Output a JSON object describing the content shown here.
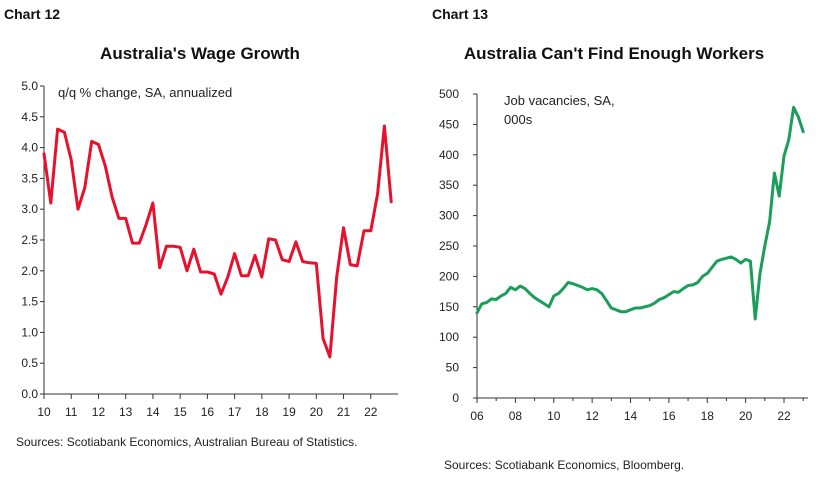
{
  "chart_data": [
    {
      "type": "line",
      "label": "Chart 12",
      "title": "Australia's Wage Growth",
      "annotation": [
        "q/q % change, SA, annualized"
      ],
      "source": "Sources: Scotiabank Economics, Australian Bureau of Statistics.",
      "color": "#e8112d",
      "ylim": [
        0,
        5
      ],
      "yticks": [
        "0.0",
        "0.5",
        "1.0",
        "1.5",
        "2.0",
        "2.5",
        "3.0",
        "3.5",
        "4.0",
        "4.5",
        "5.0"
      ],
      "xlim": [
        2010,
        2023
      ],
      "xticks": [
        "10",
        "11",
        "12",
        "13",
        "14",
        "15",
        "16",
        "17",
        "18",
        "19",
        "20",
        "21",
        "22"
      ],
      "series": [
        {
          "x": [
            2010.0,
            2010.25,
            2010.5,
            2010.75,
            2011.0,
            2011.25,
            2011.5,
            2011.75,
            2012.0,
            2012.25,
            2012.5,
            2012.75,
            2013.0,
            2013.25,
            2013.5,
            2013.75,
            2014.0,
            2014.25,
            2014.5,
            2014.75,
            2015.0,
            2015.25,
            2015.5,
            2015.75,
            2016.0,
            2016.25,
            2016.5,
            2016.75,
            2017.0,
            2017.25,
            2017.5,
            2017.75,
            2018.0,
            2018.25,
            2018.5,
            2018.75,
            2019.0,
            2019.25,
            2019.5,
            2019.75,
            2020.0,
            2020.25,
            2020.5,
            2020.75,
            2021.0,
            2021.25,
            2021.5,
            2021.75,
            2022.0,
            2022.25,
            2022.5,
            2022.75
          ],
          "values": [
            3.9,
            3.1,
            4.3,
            4.25,
            3.8,
            3.0,
            3.35,
            4.1,
            4.05,
            3.7,
            3.2,
            2.85,
            2.85,
            2.45,
            2.45,
            2.75,
            3.1,
            2.05,
            2.4,
            2.4,
            2.38,
            2.0,
            2.35,
            1.98,
            1.98,
            1.95,
            1.62,
            1.9,
            2.28,
            1.92,
            1.92,
            2.25,
            1.9,
            2.52,
            2.5,
            2.18,
            2.15,
            2.47,
            2.15,
            2.13,
            2.12,
            0.9,
            0.6,
            1.9,
            2.7,
            2.1,
            2.08,
            2.65,
            2.65,
            3.25,
            4.35,
            3.12
          ]
        }
      ]
    },
    {
      "type": "line",
      "label": "Chart 13",
      "title": "Australia Can't Find Enough Workers",
      "annotation": [
        "Job vacancies, SA,",
        "000s"
      ],
      "source": "Sources: Scotiabank Economics, Bloomberg.",
      "color": "#1a9e5a",
      "ylim": [
        0,
        500
      ],
      "yticks": [
        "0",
        "50",
        "100",
        "150",
        "200",
        "250",
        "300",
        "350",
        "400",
        "450",
        "500"
      ],
      "xlim": [
        2006,
        2023.25
      ],
      "xticks": [
        "06",
        "08",
        "10",
        "12",
        "14",
        "16",
        "18",
        "20",
        "22"
      ],
      "series": [
        {
          "x": [
            2006.0,
            2006.25,
            2006.5,
            2006.75,
            2007.0,
            2007.25,
            2007.5,
            2007.75,
            2008.0,
            2008.25,
            2008.5,
            2008.75,
            2009.0,
            2009.25,
            2009.5,
            2009.75,
            2010.0,
            2010.25,
            2010.5,
            2010.75,
            2011.0,
            2011.25,
            2011.5,
            2011.75,
            2012.0,
            2012.25,
            2012.5,
            2012.75,
            2013.0,
            2013.25,
            2013.5,
            2013.75,
            2014.0,
            2014.25,
            2014.5,
            2014.75,
            2015.0,
            2015.25,
            2015.5,
            2015.75,
            2016.0,
            2016.25,
            2016.5,
            2016.75,
            2017.0,
            2017.25,
            2017.5,
            2017.75,
            2018.0,
            2018.25,
            2018.5,
            2018.75,
            2019.0,
            2019.25,
            2019.5,
            2019.75,
            2020.0,
            2020.25,
            2020.5,
            2020.75,
            2021.0,
            2021.25,
            2021.5,
            2021.75,
            2022.0,
            2022.25,
            2022.5,
            2022.75,
            2023.0
          ],
          "values": [
            140,
            155,
            157,
            163,
            162,
            168,
            172,
            182,
            178,
            184,
            180,
            172,
            165,
            160,
            155,
            150,
            168,
            172,
            180,
            190,
            188,
            185,
            182,
            178,
            180,
            178,
            172,
            160,
            148,
            145,
            142,
            142,
            145,
            148,
            148,
            150,
            152,
            156,
            162,
            165,
            170,
            175,
            174,
            180,
            185,
            186,
            190,
            200,
            205,
            215,
            225,
            228,
            230,
            232,
            228,
            222,
            228,
            225,
            130,
            205,
            250,
            290,
            370,
            332,
            398,
            425,
            478,
            462,
            438
          ]
        }
      ]
    }
  ]
}
